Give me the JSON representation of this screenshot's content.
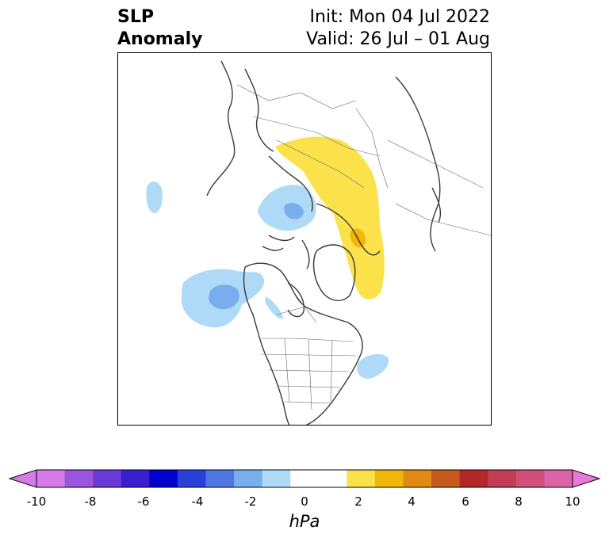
{
  "title": {
    "left_line1": "SLP",
    "left_line2": "Anomaly",
    "right_line1": "Init: Mon 04 Jul 2022",
    "right_line2": "Valid: 26 Jul – 01 Aug"
  },
  "colorbar": {
    "label": "hPa",
    "ticks": [
      "-10",
      "-8",
      "-6",
      "-4",
      "-2",
      "0",
      "2",
      "4",
      "6",
      "8",
      "10"
    ],
    "colors": [
      "#d67ae8",
      "#9b55df",
      "#6a3ad6",
      "#3a1fd0",
      "#0000cf",
      "#2a3fd9",
      "#4f76e3",
      "#78aeee",
      "#aedaf8",
      "#ffffff",
      "#ffffff",
      "#fbe14a",
      "#f2b50a",
      "#e08a14",
      "#c65a1c",
      "#b22828",
      "#c23c55",
      "#d0507a",
      "#db63a8"
    ],
    "low_extend_color": "#d67ae8",
    "high_extend_color": "#e879d6"
  },
  "anomaly_colors": {
    "light_blue": "#aedaf8",
    "mid_blue": "#78aeee",
    "dark_blue": "#4f76e3",
    "yellow": "#fbe14a",
    "orange": "#f2b50a"
  }
}
